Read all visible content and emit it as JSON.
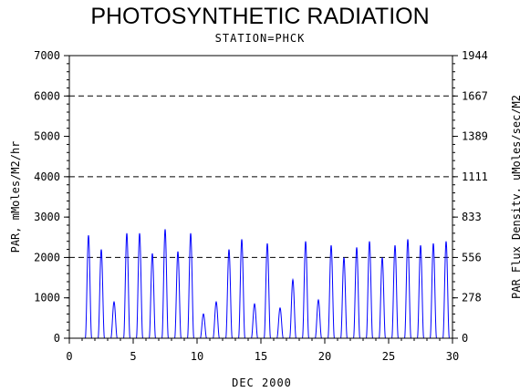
{
  "chart_data": {
    "type": "line",
    "title": "PHOTOSYNTHETIC RADIATION",
    "subtitle": "STATION=PHCK",
    "xlabel": "DEC 2000",
    "ylabel": "PAR, mMoles/M2/hr",
    "y2label": "PAR Flux Density, uMoles/sec/M2",
    "xlim": [
      0,
      30
    ],
    "ylim": [
      0,
      7000
    ],
    "x_ticks": [
      "0",
      "5",
      "10",
      "15",
      "20",
      "25",
      "30"
    ],
    "y_ticks": [
      "0",
      "1000",
      "2000",
      "3000",
      "4000",
      "5000",
      "6000",
      "7000"
    ],
    "y2_ticks": [
      "0",
      "278",
      "556",
      "833",
      "1111",
      "1389",
      "1667",
      "1944"
    ],
    "gridlines_y": [
      2000,
      4000,
      6000
    ],
    "series_color": "#0000ff",
    "daily_peaks": [
      {
        "day": 1.5,
        "peak": 2550
      },
      {
        "day": 2.5,
        "peak": 2200
      },
      {
        "day": 3.5,
        "peak": 900
      },
      {
        "day": 4.5,
        "peak": 2600
      },
      {
        "day": 5.5,
        "peak": 2600
      },
      {
        "day": 6.5,
        "peak": 2100
      },
      {
        "day": 7.5,
        "peak": 2700
      },
      {
        "day": 8.5,
        "peak": 2150
      },
      {
        "day": 9.5,
        "peak": 2600
      },
      {
        "day": 10.5,
        "peak": 600
      },
      {
        "day": 11.5,
        "peak": 900
      },
      {
        "day": 12.5,
        "peak": 2200
      },
      {
        "day": 13.5,
        "peak": 2450
      },
      {
        "day": 14.5,
        "peak": 850
      },
      {
        "day": 15.5,
        "peak": 2350
      },
      {
        "day": 16.5,
        "peak": 750
      },
      {
        "day": 17.5,
        "peak": 1450
      },
      {
        "day": 18.5,
        "peak": 2400
      },
      {
        "day": 19.5,
        "peak": 950
      },
      {
        "day": 20.5,
        "peak": 2300
      },
      {
        "day": 21.5,
        "peak": 2000
      },
      {
        "day": 22.5,
        "peak": 2250
      },
      {
        "day": 23.5,
        "peak": 2400
      },
      {
        "day": 24.5,
        "peak": 2000
      },
      {
        "day": 25.5,
        "peak": 2300
      },
      {
        "day": 26.5,
        "peak": 2450
      },
      {
        "day": 27.5,
        "peak": 2300
      },
      {
        "day": 28.5,
        "peak": 2350
      },
      {
        "day": 29.5,
        "peak": 2400
      }
    ]
  }
}
